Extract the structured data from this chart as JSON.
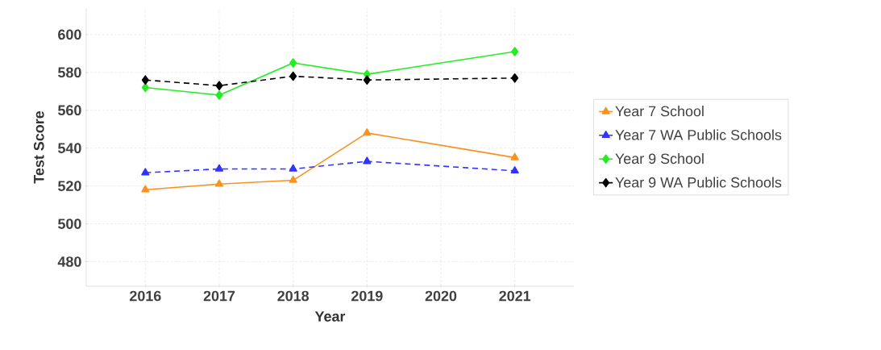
{
  "chart_data": {
    "type": "line",
    "xlabel": "Year",
    "ylabel": "Test Score",
    "x": [
      2016,
      2017,
      2018,
      2019,
      2021
    ],
    "series": [
      {
        "name": "Year 7 School",
        "color": "#f7931e",
        "marker": "triangle",
        "line_style": "solid",
        "values": [
          518,
          521,
          523,
          548,
          535
        ]
      },
      {
        "name": "Year 7 WA Public Schools",
        "color": "#3333ff",
        "marker": "triangle",
        "line_style": "dashed",
        "values": [
          527,
          529,
          529,
          533,
          528
        ]
      },
      {
        "name": "Year 9 School",
        "color": "#22ee22",
        "marker": "diamond",
        "line_style": "solid",
        "values": [
          572,
          568,
          585,
          579,
          591
        ]
      },
      {
        "name": "Year 9 WA Public Schools",
        "color": "#000000",
        "marker": "diamond",
        "line_style": "dashed",
        "values": [
          576,
          573,
          578,
          576,
          577
        ]
      }
    ],
    "xlim": [
      2015.2,
      2021.8
    ],
    "xticks": [
      2016,
      2017,
      2018,
      2019,
      2020,
      2021
    ],
    "ylim": [
      467,
      614
    ],
    "yticks": [
      480,
      500,
      520,
      540,
      560,
      580,
      600
    ],
    "grid": true,
    "legend": "right"
  }
}
